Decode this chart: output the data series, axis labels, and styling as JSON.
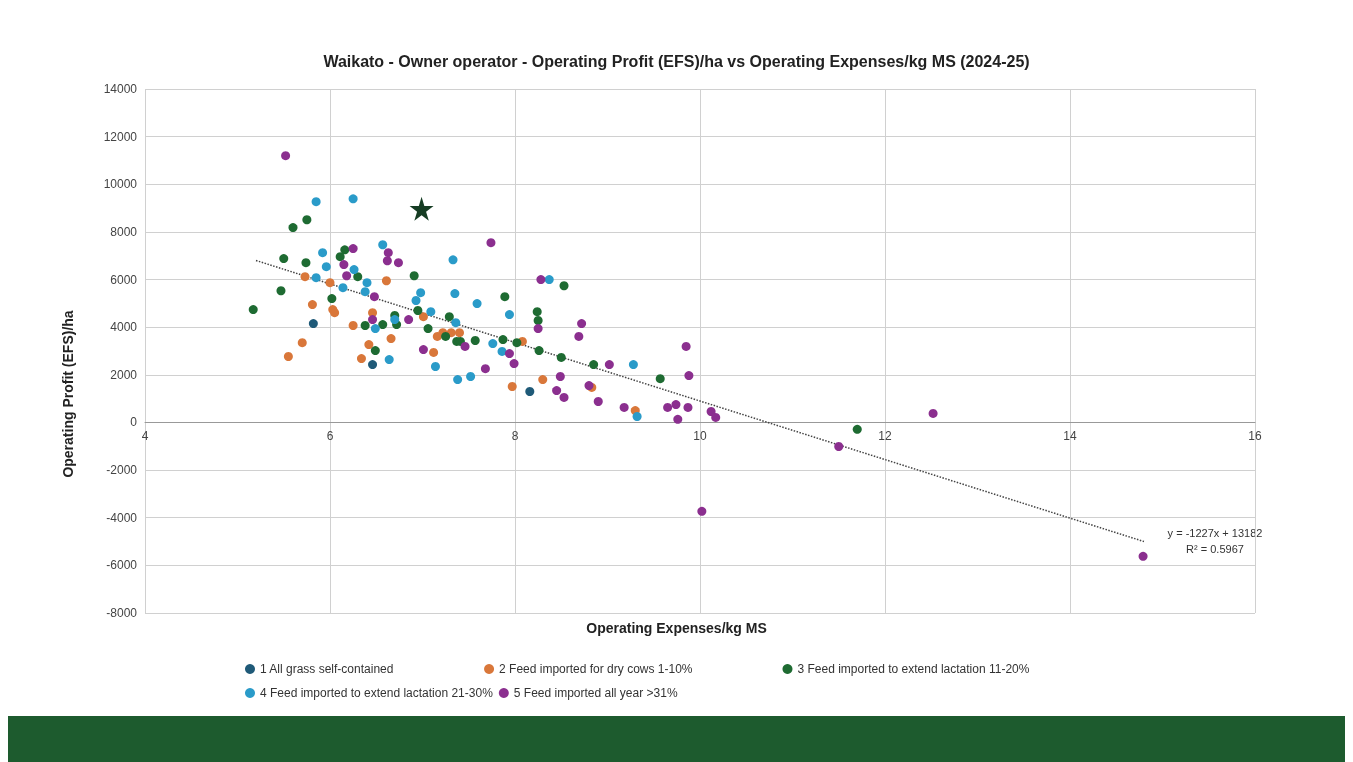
{
  "chart_data": {
    "type": "scatter",
    "title": "Waikato - Owner operator - Operating Profit (EFS)/ha vs Operating Expenses/kg MS (2024-25)",
    "xlabel": "Operating Expenses/kg MS",
    "ylabel": "Operating Profit (EFS)/ha",
    "xlim": [
      4,
      16
    ],
    "xticks": [
      4,
      6,
      8,
      10,
      12,
      14,
      16
    ],
    "ylim": [
      -8000,
      14000
    ],
    "yticks": [
      -8000,
      -6000,
      -4000,
      -2000,
      0,
      2000,
      4000,
      6000,
      8000,
      10000,
      12000,
      14000
    ],
    "grid": true,
    "legend": "bottom",
    "marker": "circle",
    "series": [
      {
        "name": "1 All grass self-contained",
        "color": "#1f5a78",
        "x": [
          5.82,
          6.46,
          8.16
        ],
        "values": [
          4150,
          2430,
          1300
        ]
      },
      {
        "name": "2 Feed imported for dry cows 1-10%",
        "color": "#d9773a",
        "x": [
          5.73,
          6.0,
          5.81,
          6.03,
          6.05,
          5.7,
          5.55,
          6.25,
          6.46,
          6.61,
          6.42,
          6.34,
          6.66,
          7.01,
          7.12,
          7.16,
          7.22,
          7.31,
          7.4,
          8.08,
          7.97,
          8.3,
          8.83,
          9.3
        ],
        "values": [
          6120,
          5870,
          4950,
          4740,
          4610,
          3350,
          2770,
          4070,
          4610,
          5950,
          3270,
          2680,
          3520,
          4440,
          2940,
          3610,
          3770,
          3770,
          3770,
          3400,
          1510,
          1800,
          1470,
          500
        ]
      },
      {
        "name": "3 Feed imported to extend lactation 11-20%",
        "color": "#1e6b32",
        "x": [
          5.17,
          5.47,
          5.5,
          5.6,
          5.75,
          5.74,
          6.02,
          6.16,
          6.11,
          6.3,
          6.38,
          6.49,
          6.57,
          6.7,
          6.72,
          6.91,
          6.95,
          7.06,
          7.25,
          7.29,
          7.37,
          7.41,
          7.57,
          7.89,
          7.87,
          8.02,
          8.24,
          8.25,
          8.26,
          8.5,
          8.53,
          8.85,
          9.57,
          11.7
        ],
        "values": [
          4740,
          5530,
          6880,
          8180,
          8510,
          6710,
          5200,
          7250,
          6960,
          6120,
          4070,
          3020,
          4110,
          4490,
          4110,
          6160,
          4700,
          3940,
          3610,
          4440,
          3400,
          3400,
          3440,
          5280,
          3480,
          3350,
          4650,
          4280,
          3020,
          2730,
          5740,
          2430,
          1840,
          -290
        ]
      },
      {
        "name": "4 Feed imported to extend lactation 21-30%",
        "color": "#2a9bc9",
        "x": [
          5.85,
          6.25,
          5.92,
          5.96,
          5.85,
          6.14,
          6.26,
          6.4,
          6.38,
          6.57,
          6.49,
          6.7,
          6.64,
          6.98,
          6.93,
          7.09,
          7.14,
          7.33,
          7.35,
          7.59,
          7.36,
          7.94,
          7.76,
          7.86,
          7.38,
          7.52,
          8.37,
          9.28,
          9.32
        ],
        "values": [
          9270,
          9390,
          7130,
          6540,
          6080,
          5660,
          6420,
          5870,
          5490,
          7460,
          3940,
          4320,
          2640,
          5450,
          5120,
          4650,
          2350,
          6830,
          5410,
          4990,
          4190,
          4530,
          3310,
          2980,
          1800,
          1930,
          6000,
          2430,
          250
        ]
      },
      {
        "name": "5 Feed imported all year >31%",
        "color": "#8b2f8f",
        "x": [
          5.52,
          6.25,
          6.15,
          6.18,
          6.63,
          6.62,
          6.74,
          6.48,
          6.46,
          6.85,
          7.01,
          7.74,
          8.28,
          8.25,
          8.72,
          8.69,
          7.46,
          7.94,
          7.99,
          7.68,
          8.49,
          8.45,
          8.53,
          8.8,
          8.9,
          9.02,
          9.18,
          9.85,
          9.88,
          9.65,
          9.74,
          9.87,
          9.76,
          10.12,
          10.17,
          10.02,
          11.5,
          12.52,
          14.79
        ],
        "values": [
          11200,
          7300,
          6630,
          6160,
          7130,
          6790,
          6710,
          5280,
          4320,
          4320,
          3060,
          7550,
          6000,
          3940,
          4150,
          3610,
          3190,
          2890,
          2470,
          2260,
          1930,
          1340,
          1050,
          1550,
          880,
          2430,
          630,
          3190,
          1970,
          630,
          750,
          630,
          130,
          460,
          210,
          -3730,
          -1010,
          380,
          -5620
        ]
      },
      {
        "type": "scatter",
        "marker": "star",
        "color": "#163d24",
        "x": [
          6.99
        ],
        "values": [
          8970
        ]
      },
      {
        "type": "line",
        "line_style": "dotted",
        "marker": "none",
        "color": "#444444",
        "x": [
          5.2,
          14.8
        ],
        "values": [
          6800,
          -5000
        ]
      }
    ],
    "annotations": [
      "y = -1227x + 13182",
      "R² = 0.5967"
    ]
  }
}
